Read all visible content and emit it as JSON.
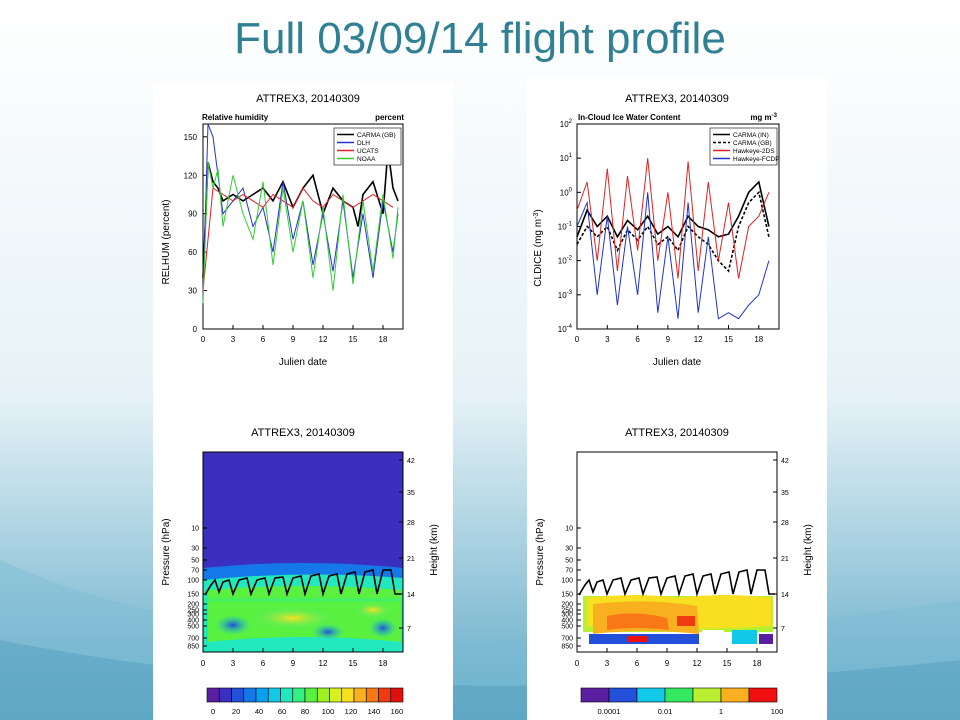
{
  "slide": {
    "title": "Full 03/09/14 flight profile",
    "colors": {
      "title": "#2f7f95",
      "bg_top": "#ffffff",
      "bg_bottom": "#5fa9c6"
    }
  },
  "chart_data": [
    {
      "type": "line",
      "title": "ATTREX3, 20140309",
      "subtitle_left": "Relative humidity",
      "subtitle_right": "percent",
      "xlabel": "Julien date",
      "ylabel": "RELHUM (percent)",
      "xlim": [
        0,
        20
      ],
      "ylim": [
        0,
        160
      ],
      "xticks": [
        0,
        3,
        6,
        9,
        12,
        15,
        18
      ],
      "yticks": [
        0,
        30,
        60,
        90,
        120,
        150
      ],
      "legend_position": "top-right",
      "series": [
        {
          "name": "CARMA (GB)",
          "color": "#000000",
          "x": [
            0,
            0.5,
            1,
            1.5,
            2,
            3,
            4,
            5,
            6,
            7,
            8,
            9,
            10,
            11,
            12,
            13,
            14,
            15,
            15.5,
            16,
            17,
            18,
            18.5,
            19,
            19.5
          ],
          "y": [
            40,
            130,
            115,
            110,
            100,
            105,
            100,
            105,
            110,
            100,
            115,
            95,
            110,
            120,
            90,
            110,
            100,
            95,
            80,
            105,
            115,
            90,
            140,
            110,
            100
          ]
        },
        {
          "name": "DLH",
          "color": "#2233cc",
          "x": [
            0,
            0.5,
            1,
            1.5,
            2,
            3,
            4,
            5,
            6,
            7,
            8,
            9,
            10,
            11,
            12,
            13,
            14,
            15,
            16,
            17,
            18,
            19,
            19.5
          ],
          "y": [
            25,
            160,
            150,
            120,
            90,
            100,
            110,
            80,
            95,
            60,
            115,
            70,
            100,
            50,
            90,
            45,
            100,
            40,
            90,
            40,
            100,
            60,
            90
          ]
        },
        {
          "name": "UCATS",
          "color": "#dd2222",
          "x": [
            0,
            1,
            2,
            3,
            4,
            5,
            6,
            7,
            8,
            9,
            10,
            11,
            12,
            13,
            14,
            15,
            16,
            17,
            18,
            19
          ],
          "y": [
            30,
            110,
            105,
            100,
            105,
            100,
            95,
            105,
            100,
            95,
            110,
            100,
            95,
            105,
            100,
            95,
            100,
            105,
            100,
            95
          ]
        },
        {
          "name": "NOAA",
          "color": "#33cc33",
          "x": [
            0,
            0.5,
            1,
            1.5,
            2,
            3,
            4,
            5,
            6,
            7,
            8,
            9,
            10,
            11,
            12,
            13,
            14,
            15,
            16,
            17,
            18,
            19,
            19.5
          ],
          "y": [
            20,
            130,
            110,
            125,
            80,
            120,
            90,
            70,
            115,
            50,
            110,
            60,
            100,
            40,
            95,
            30,
            105,
            35,
            100,
            45,
            105,
            55,
            95
          ]
        }
      ]
    },
    {
      "type": "line",
      "title": "ATTREX3, 20140309",
      "subtitle_left": "In-Cloud Ice Water Content",
      "subtitle_right": "mg m",
      "subtitle_right_sup": "-3",
      "xlabel": "Julien date",
      "ylabel": "CLDICE (mg m",
      "ylabel_sup": "-3",
      "ylabel_end": ")",
      "yscale": "log",
      "xlim": [
        0,
        20
      ],
      "ylim": [
        0.0001,
        100
      ],
      "xticks": [
        0,
        3,
        6,
        9,
        12,
        15,
        18
      ],
      "yticks": [
        "10^-4",
        "10^-3",
        "10^-2",
        "10^-1",
        "10^0",
        "10^1",
        "10^2"
      ],
      "legend_position": "top-right",
      "series": [
        {
          "name": "CARMA (IN)",
          "color": "#000000",
          "x": [
            0,
            1,
            2,
            3,
            4,
            5,
            6,
            7,
            8,
            9,
            10,
            11,
            12,
            13,
            14,
            15,
            16,
            17,
            18,
            19
          ],
          "y": [
            0.05,
            0.3,
            0.1,
            0.2,
            0.05,
            0.15,
            0.08,
            0.2,
            0.06,
            0.1,
            0.05,
            0.2,
            0.1,
            0.08,
            0.05,
            0.06,
            0.2,
            1,
            2,
            0.1
          ]
        },
        {
          "name": "CARMA (GB)",
          "color": "#000000",
          "dash": true,
          "x": [
            0,
            1,
            2,
            3,
            4,
            5,
            6,
            7,
            8,
            9,
            10,
            11,
            12,
            13,
            14,
            15,
            16,
            17,
            18,
            19
          ],
          "y": [
            0.03,
            0.1,
            0.05,
            0.1,
            0.02,
            0.08,
            0.04,
            0.1,
            0.03,
            0.05,
            0.02,
            0.1,
            0.05,
            0.03,
            0.01,
            0.005,
            0.1,
            0.5,
            1,
            0.05
          ]
        },
        {
          "name": "Hawkeye-2DS",
          "color": "#dd2222",
          "x": [
            0,
            1,
            2,
            3,
            4,
            5,
            6,
            7,
            8,
            9,
            10,
            11,
            12,
            13,
            14,
            15,
            16,
            17,
            18,
            19
          ],
          "y": [
            0.3,
            2,
            0.01,
            5,
            0.005,
            3,
            0.02,
            10,
            0.01,
            1,
            0.003,
            8,
            0.005,
            2,
            0.01,
            0.5,
            0.003,
            0.1,
            0.2,
            1
          ]
        },
        {
          "name": "Hawkeye-FCDP",
          "color": "#2233cc",
          "x": [
            0,
            1,
            2,
            3,
            4,
            5,
            6,
            7,
            8,
            9,
            10,
            11,
            12,
            13,
            14,
            15,
            16,
            17,
            18,
            19
          ],
          "y": [
            0.1,
            0.5,
            0.001,
            0.2,
            0.0005,
            0.1,
            0.001,
            1,
            0.0003,
            0.05,
            0.0002,
            0.5,
            0.0003,
            0.05,
            0.0002,
            0.0003,
            0.0002,
            0.0005,
            0.001,
            0.01
          ]
        }
      ]
    },
    {
      "type": "heatmap",
      "title": "ATTREX3, 20140309",
      "xlabel": "",
      "ylabel": "Pressure (hPa)",
      "ylabel_right": "Height (km)",
      "xlim": [
        0,
        20
      ],
      "xticks": [
        0,
        3,
        6,
        9,
        12,
        15,
        18
      ],
      "yticks_left": [
        "10",
        "30",
        "50",
        "70",
        "100",
        "150",
        "200",
        "250",
        "300",
        "400",
        "500",
        "700",
        "850"
      ],
      "yticks_right": [
        "42",
        "35",
        "28",
        "21",
        "14",
        "7"
      ],
      "colorbar_labels": [
        "0",
        "20",
        "40",
        "60",
        "80",
        "100",
        "120",
        "140",
        "160"
      ],
      "colorbar_colors": [
        "#5a1fa0",
        "#3a2fbf",
        "#2250d8",
        "#1478e8",
        "#0aa0f0",
        "#10c8e8",
        "#22e8c0",
        "#34f080",
        "#5af040",
        "#9ef020",
        "#d8f020",
        "#f8e020",
        "#f8b020",
        "#f87818",
        "#f03a10",
        "#e01010"
      ]
    },
    {
      "type": "heatmap",
      "title": "ATTREX3, 20140309",
      "xlabel": "",
      "ylabel": "Pressure (hPa)",
      "ylabel_right": "Height (km)",
      "xlim": [
        0,
        20
      ],
      "xticks": [
        0,
        3,
        6,
        9,
        12,
        15,
        18
      ],
      "yticks_left": [
        "10",
        "30",
        "50",
        "70",
        "100",
        "150",
        "200",
        "250",
        "300",
        "400",
        "500",
        "700",
        "850"
      ],
      "yticks_right": [
        "42",
        "35",
        "28",
        "21",
        "14",
        "7"
      ],
      "colorbar_labels": [
        "0.0001",
        "0.01",
        "1",
        "100"
      ],
      "colorbar_colors": [
        "#5a1fa0",
        "#2250d8",
        "#10c8e8",
        "#34e860",
        "#b8f030",
        "#f8b020",
        "#f01010"
      ]
    }
  ]
}
